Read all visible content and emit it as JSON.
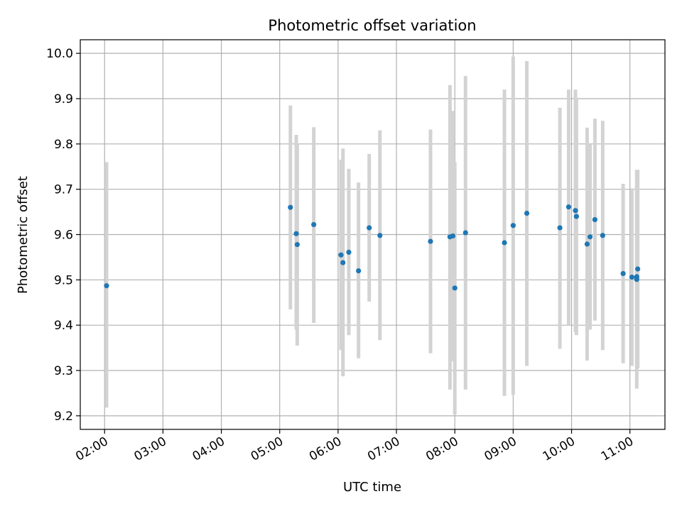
{
  "chart_data": {
    "type": "scatter",
    "title": "Photometric offset variation",
    "xlabel": "UTC time",
    "ylabel": "Photometric offset",
    "x_unit": "UTC time (HH:MM)",
    "xlim": [
      "01:35",
      "11:36"
    ],
    "ylim": [
      9.17,
      10.03
    ],
    "x_ticks": [
      "02:00",
      "03:00",
      "04:00",
      "05:00",
      "06:00",
      "07:00",
      "08:00",
      "09:00",
      "10:00",
      "11:00"
    ],
    "y_ticks": [
      "9.2",
      "9.3",
      "9.4",
      "9.5",
      "9.6",
      "9.7",
      "9.8",
      "9.9",
      "10.0"
    ],
    "grid": true,
    "legend": "none",
    "colors": {
      "points": "#1f77b4",
      "error_bars": "#d3d3d3",
      "grid": "#b0b0b0"
    },
    "points": [
      {
        "x": "02:02",
        "y": 9.487,
        "y_low": 9.218,
        "y_high": 9.76
      },
      {
        "x": "05:11",
        "y": 9.66,
        "y_low": 9.435,
        "y_high": 9.885
      },
      {
        "x": "05:17",
        "y": 9.602,
        "y_low": 9.39,
        "y_high": 9.82
      },
      {
        "x": "05:18",
        "y": 9.578,
        "y_low": 9.355,
        "y_high": 9.8
      },
      {
        "x": "05:35",
        "y": 9.622,
        "y_low": 9.405,
        "y_high": 9.837
      },
      {
        "x": "06:03",
        "y": 9.555,
        "y_low": 9.345,
        "y_high": 9.765
      },
      {
        "x": "06:05",
        "y": 9.538,
        "y_low": 9.287,
        "y_high": 9.79
      },
      {
        "x": "06:11",
        "y": 9.561,
        "y_low": 9.378,
        "y_high": 9.745
      },
      {
        "x": "06:21",
        "y": 9.52,
        "y_low": 9.327,
        "y_high": 9.715
      },
      {
        "x": "06:32",
        "y": 9.615,
        "y_low": 9.452,
        "y_high": 9.778
      },
      {
        "x": "06:43",
        "y": 9.598,
        "y_low": 9.367,
        "y_high": 9.83
      },
      {
        "x": "07:35",
        "y": 9.585,
        "y_low": 9.338,
        "y_high": 9.832
      },
      {
        "x": "07:55",
        "y": 9.595,
        "y_low": 9.258,
        "y_high": 9.93
      },
      {
        "x": "07:58",
        "y": 9.597,
        "y_low": 9.32,
        "y_high": 9.873
      },
      {
        "x": "08:00",
        "y": 9.482,
        "y_low": 9.203,
        "y_high": 9.76
      },
      {
        "x": "08:11",
        "y": 9.604,
        "y_low": 9.258,
        "y_high": 9.95
      },
      {
        "x": "08:51",
        "y": 9.582,
        "y_low": 9.244,
        "y_high": 9.92
      },
      {
        "x": "09:00",
        "y": 9.62,
        "y_low": 9.246,
        "y_high": 9.993
      },
      {
        "x": "09:14",
        "y": 9.647,
        "y_low": 9.31,
        "y_high": 9.983
      },
      {
        "x": "09:48",
        "y": 9.615,
        "y_low": 9.348,
        "y_high": 9.88
      },
      {
        "x": "09:57",
        "y": 9.661,
        "y_low": 9.4,
        "y_high": 9.92
      },
      {
        "x": "10:04",
        "y": 9.653,
        "y_low": 9.385,
        "y_high": 9.92
      },
      {
        "x": "10:05",
        "y": 9.64,
        "y_low": 9.378,
        "y_high": 9.902
      },
      {
        "x": "10:16",
        "y": 9.579,
        "y_low": 9.322,
        "y_high": 9.836
      },
      {
        "x": "10:19",
        "y": 9.595,
        "y_low": 9.39,
        "y_high": 9.8
      },
      {
        "x": "10:24",
        "y": 9.633,
        "y_low": 9.41,
        "y_high": 9.856
      },
      {
        "x": "10:32",
        "y": 9.598,
        "y_low": 9.345,
        "y_high": 9.851
      },
      {
        "x": "10:53",
        "y": 9.514,
        "y_low": 9.316,
        "y_high": 9.712
      },
      {
        "x": "11:02",
        "y": 9.506,
        "y_low": 9.31,
        "y_high": 9.702
      },
      {
        "x": "11:07",
        "y": 9.501,
        "y_low": 9.26,
        "y_high": 9.743
      },
      {
        "x": "11:07",
        "y": 9.507,
        "y_low": 9.308,
        "y_high": 9.706
      },
      {
        "x": "11:08",
        "y": 9.524,
        "y_low": 9.305,
        "y_high": 9.743
      }
    ]
  }
}
